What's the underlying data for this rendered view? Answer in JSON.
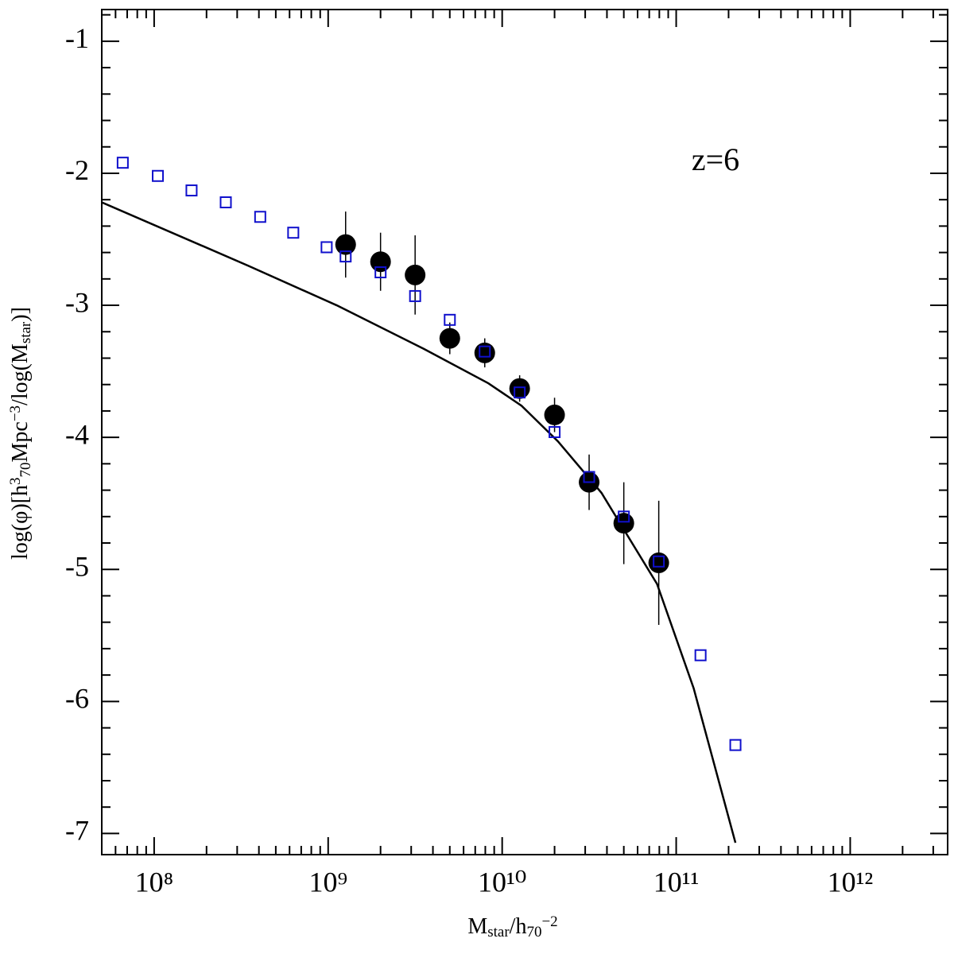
{
  "chart_data": {
    "type": "scatter",
    "xlabel": [
      {
        "text": "M"
      },
      {
        "text": "star",
        "shift": "sub"
      },
      {
        "text": "/h"
      },
      {
        "text": "70",
        "shift": "sub"
      },
      {
        "text": "−2",
        "shift": "sup"
      }
    ],
    "ylabel": [
      {
        "text": "log(φ)[h"
      },
      {
        "text": "3",
        "shift": "sup"
      },
      {
        "text": "70",
        "shift": "sub"
      },
      {
        "text": "Mpc"
      },
      {
        "text": "−3",
        "shift": "sup"
      },
      {
        "text": "/log(M"
      },
      {
        "text": "star",
        "shift": "sub"
      },
      {
        "text": ")]"
      }
    ],
    "annotation": {
      "text": "z=6",
      "color": "#1010cc"
    },
    "xscale": "log",
    "xlim": [
      50000000.0,
      3630000000000.0
    ],
    "xticks": [
      {
        "value": 100000000.0,
        "label": "10⁸"
      },
      {
        "value": 1000000000.0,
        "label": "10⁹"
      },
      {
        "value": 10000000000.0,
        "label": "10¹⁰"
      },
      {
        "value": 100000000000.0,
        "label": "10¹¹"
      },
      {
        "value": 1000000000000.0,
        "label": "10¹²"
      }
    ],
    "xminorticks": [
      60000000.0,
      70000000.0,
      80000000.0,
      90000000.0,
      200000000.0,
      300000000.0,
      400000000.0,
      500000000.0,
      600000000.0,
      700000000.0,
      800000000.0,
      900000000.0,
      2000000000.0,
      3000000000.0,
      4000000000.0,
      5000000000.0,
      6000000000.0,
      7000000000.0,
      8000000000.0,
      9000000000.0,
      20000000000.0,
      30000000000.0,
      40000000000.0,
      50000000000.0,
      60000000000.0,
      70000000000.0,
      80000000000.0,
      90000000000.0,
      200000000000.0,
      300000000000.0,
      400000000000.0,
      500000000000.0,
      600000000000.0,
      700000000000.0,
      800000000000.0,
      900000000000.0,
      2000000000000.0,
      3000000000000.0
    ],
    "ylim": [
      -7.16,
      -0.76
    ],
    "yticks": [
      -7,
      -6,
      -5,
      -4,
      -3,
      -2,
      -1
    ],
    "yminorticks": [
      -6.8,
      -6.6,
      -6.4,
      -6.2,
      -5.8,
      -5.6,
      -5.4,
      -5.2,
      -4.8,
      -4.6,
      -4.4,
      -4.2,
      -3.8,
      -3.6,
      -3.4,
      -3.2,
      -2.8,
      -2.6,
      -2.4,
      -2.2,
      -1.8,
      -1.6,
      -1.4,
      -1.2,
      -0.8
    ],
    "series": [
      {
        "type": "line",
        "color": "#000000",
        "x": [
          50000000.0,
          347000000.0,
          1120000000.0,
          3550000000.0,
          8320000000.0,
          12900000000.0,
          20900000000.0,
          37200000000.0,
          77600000000.0,
          126000000000.0,
          219000000000.0
        ],
        "values": [
          -2.22,
          -2.7,
          -3.0,
          -3.33,
          -3.59,
          -3.76,
          -4.03,
          -4.42,
          -5.11,
          -5.9,
          -7.07
        ]
      },
      {
        "type": "square",
        "color": "#1010cc",
        "x": [
          66000000.0,
          105000000.0,
          164000000.0,
          258000000.0,
          407000000.0,
          630000000.0,
          980000000.0,
          1260000000.0,
          2000000000.0,
          3160000000.0,
          5000000000.0,
          7940000000.0,
          12600000000.0,
          20000000000.0,
          31600000000.0,
          50000000000.0,
          79400000000.0,
          138000000000.0,
          219000000000.0
        ],
        "values": [
          -1.92,
          -2.02,
          -2.13,
          -2.22,
          -2.33,
          -2.45,
          -2.56,
          -2.63,
          -2.75,
          -2.93,
          -3.11,
          -3.35,
          -3.66,
          -3.96,
          -4.3,
          -4.6,
          -4.94,
          -5.65,
          -6.33
        ]
      },
      {
        "type": "circle",
        "color": "#000000",
        "x": [
          1260000000.0,
          2000000000.0,
          3160000000.0,
          5000000000.0,
          7940000000.0,
          12600000000.0,
          20000000000.0,
          31600000000.0,
          50000000000.0,
          79400000000.0
        ],
        "values": [
          -2.54,
          -2.67,
          -2.77,
          -3.25,
          -3.36,
          -3.63,
          -3.83,
          -4.34,
          -4.65,
          -4.95
        ],
        "errors": [
          0.25,
          0.22,
          0.3,
          0.12,
          0.11,
          0.1,
          0.13,
          0.21,
          0.31,
          0.47
        ]
      }
    ]
  }
}
